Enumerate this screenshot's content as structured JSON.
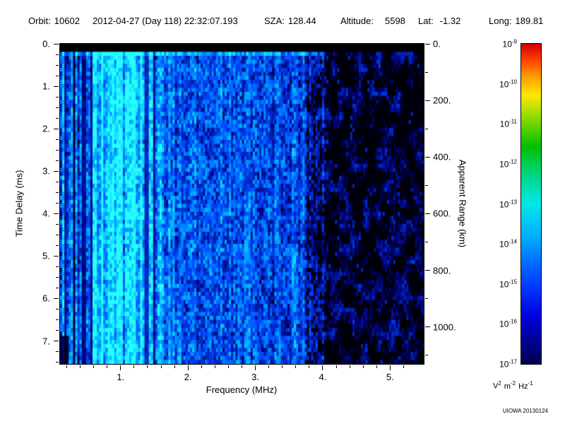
{
  "header": {
    "orbit_label": "Orbit:",
    "orbit_value": "10602",
    "datetime": "2012-04-27 (Day 118) 22:32:07.193",
    "sza_label": "SZA:",
    "sza_value": "128.44",
    "altitude_label": "Altitude:",
    "altitude_value": "5598",
    "lat_label": "Lat:",
    "lat_value": "-1.32",
    "long_label": "Long:",
    "long_value": "189.81"
  },
  "chart_data": {
    "type": "heatmap",
    "title": "",
    "xlabel": "Frequency (MHz)",
    "ylabel_left": "Time Delay (ms)",
    "ylabel_right": "Apparent Range (km)",
    "x_range_mhz": [
      0.1,
      5.5
    ],
    "y_range_ms": [
      0.0,
      7.54
    ],
    "x_major_ticks": [
      1,
      2,
      3,
      4,
      5
    ],
    "x_major_tick_labels": [
      "1.",
      "2.",
      "3.",
      "4.",
      "5."
    ],
    "y_major_ticks_ms": [
      0,
      1,
      2,
      3,
      4,
      5,
      6,
      7
    ],
    "y_major_tick_labels": [
      "0.",
      "1.",
      "2.",
      "3.",
      "4.",
      "5.",
      "6.",
      "7."
    ],
    "right_ticks_km": [
      0,
      200,
      400,
      600,
      800,
      1000
    ],
    "right_tick_labels": [
      "0.",
      "200.",
      "400.",
      "600.",
      "800.",
      "1000."
    ],
    "grid": false,
    "colorbar": {
      "scale": "log10",
      "tick_base": "10",
      "tick_exponents": [
        "-9",
        "-10",
        "-11",
        "-12",
        "-13",
        "-14",
        "-15",
        "-16",
        "-17"
      ],
      "value_min": "1e-17",
      "value_max": "1e-9",
      "units_parts": {
        "v": "V",
        "v_sup": "2",
        "m": "m",
        "m_sup": "-2",
        "hz": "Hz",
        "hz_sup": "-1"
      },
      "gradient_stops": [
        {
          "c": "#d00000",
          "p": 0
        },
        {
          "c": "#ff4000",
          "p": 5
        },
        {
          "c": "#ff9800",
          "p": 10
        },
        {
          "c": "#ffe800",
          "p": 16
        },
        {
          "c": "#80d800",
          "p": 24
        },
        {
          "c": "#00c000",
          "p": 32
        },
        {
          "c": "#00d890",
          "p": 42
        },
        {
          "c": "#00e8e8",
          "p": 50
        },
        {
          "c": "#00b0ff",
          "p": 60
        },
        {
          "c": "#0070ff",
          "p": 68
        },
        {
          "c": "#0038ff",
          "p": 76
        },
        {
          "c": "#0000e0",
          "p": 85
        },
        {
          "c": "#000090",
          "p": 93
        },
        {
          "c": "#000050",
          "p": 100
        }
      ]
    },
    "spectrum_profile": {
      "summary": "AIS radar sounder ionogram: black transmit band at top of plot, thin bright echo line just below it, bright cyan noise band near 0.5-1.5 MHz with narrow dark vertical lines at low frequency, medium blue diffuse noise 1.8-3.7 MHz, mostly black with scattered faint dark-blue patches above about 4 MHz",
      "transmit_band_ms": 0.22,
      "bright_row_ms": 0.25,
      "segments": [
        {
          "f0": 0.1,
          "f1": 0.2,
          "base": 0.5
        },
        {
          "f0": 0.2,
          "f1": 0.5,
          "base": 0.46
        },
        {
          "f0": 0.5,
          "f1": 0.65,
          "base": 0.72
        },
        {
          "f0": 0.65,
          "f1": 1.45,
          "base": 0.85
        },
        {
          "f0": 1.45,
          "f1": 1.8,
          "base": 0.6
        },
        {
          "f0": 1.8,
          "f1": 3.0,
          "base": 0.5
        },
        {
          "f0": 3.0,
          "f1": 3.75,
          "base": 0.44
        },
        {
          "f0": 3.75,
          "f1": 4.05,
          "base": 0.2
        },
        {
          "f0": 4.05,
          "f1": 5.5,
          "base": 0.08
        }
      ],
      "dark_lines_mhz": [
        0.18,
        0.31,
        0.45,
        0.57,
        1.38,
        1.49
      ],
      "dark_patch": {
        "f_max": 0.24,
        "t_min_ms": 6.9
      }
    }
  },
  "credit": "UIOWA 20130124"
}
